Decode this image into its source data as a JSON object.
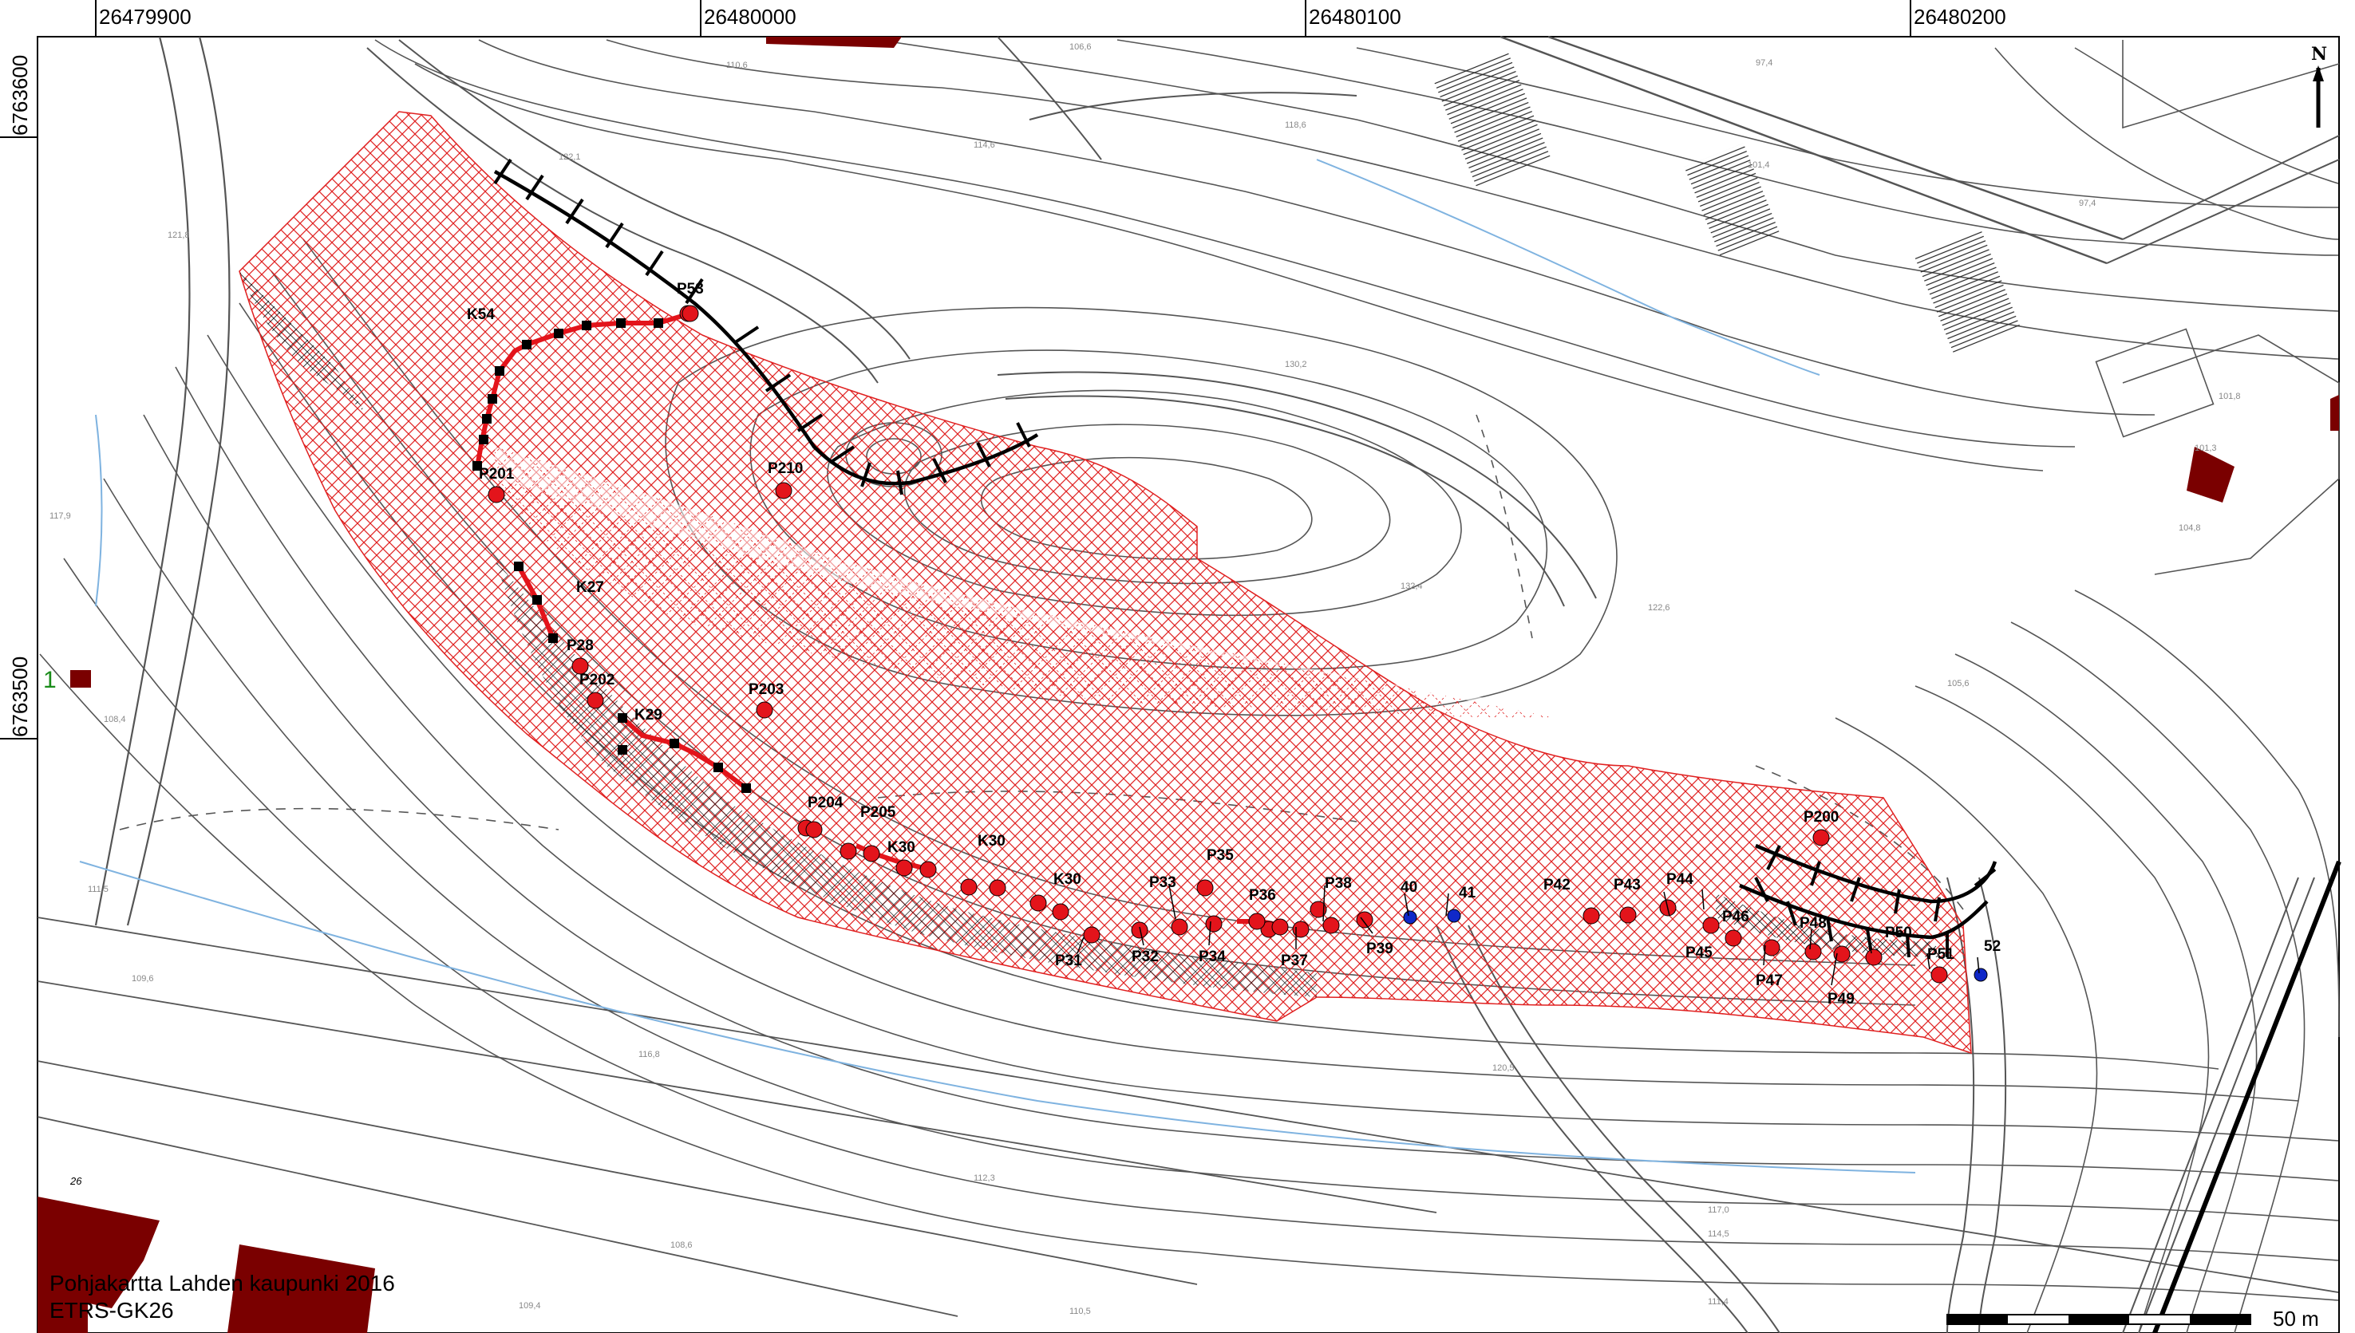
{
  "map": {
    "coords_x": [
      "26479900",
      "26480000",
      "26480100",
      "26480200"
    ],
    "coords_y": [
      "6763600",
      "6763500"
    ],
    "north_label": "N",
    "scale_label": "50 m",
    "credit_line1": "Pohjakartta Lahden kaupunki 2016",
    "credit_line2": "ETRS-GK26",
    "side_marker": "1",
    "block_number": "26",
    "colors": {
      "hatch": "#e02020",
      "point": "#e3141b",
      "blue_point": "#1028c8",
      "building": "#7a0000",
      "contour": "#555555",
      "water": "#7fb3e0"
    },
    "profile_labels": [
      "K54",
      "K27",
      "K29",
      "K30",
      "K30",
      "K30"
    ],
    "point_labels": [
      "P53",
      "P201",
      "P210",
      "P28",
      "P202",
      "P203",
      "P204",
      "P205",
      "P31",
      "P32",
      "P33",
      "P34",
      "P35",
      "P36",
      "P37",
      "P38",
      "P39",
      "40",
      "41",
      "P42",
      "P43",
      "P44",
      "P45",
      "P46",
      "P47",
      "P48",
      "P49",
      "P50",
      "P51",
      "52",
      "P200"
    ],
    "elevations": [
      "110,6",
      "106,6",
      "97,4",
      "114,6",
      "118,6",
      "122,1",
      "121,8",
      "130,2",
      "132,4",
      "122,6",
      "101,4",
      "97,4",
      "101,8",
      "101,3",
      "104,8",
      "117,9",
      "105,6",
      "109,6",
      "111,5",
      "108,4",
      "117,0",
      "114,5",
      "110,5",
      "112,3",
      "116,8",
      "120,5",
      "108,6",
      "109,4",
      "111,4"
    ]
  }
}
